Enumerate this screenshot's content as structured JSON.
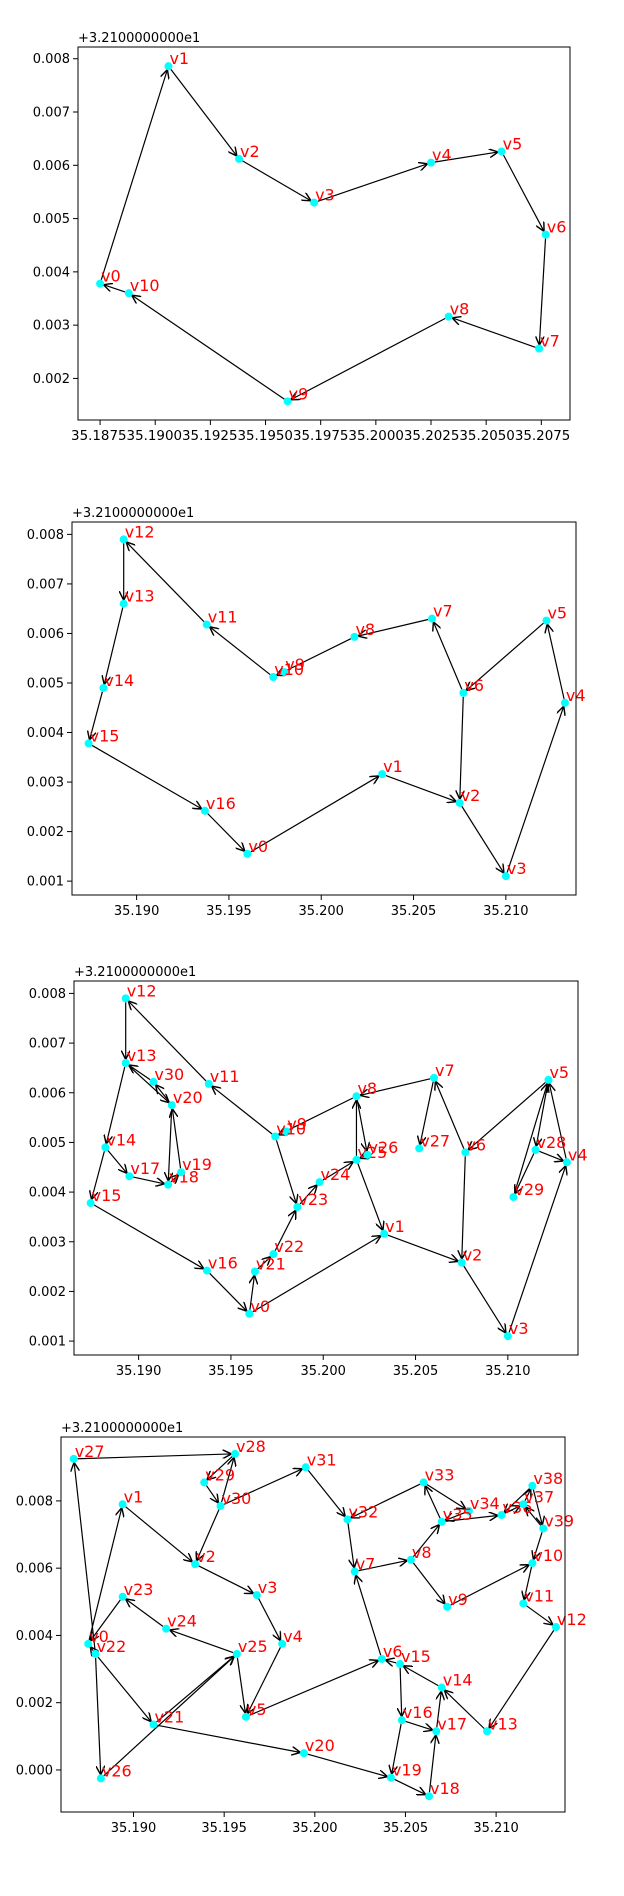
{
  "chart_data": [
    {
      "type": "graph",
      "offset_label": "+3.2100000000e1",
      "xlim": [
        35.1865,
        35.2088
      ],
      "ylim": [
        0.00122,
        0.00822
      ],
      "xticks": [
        "35.187535.190035.192535.195035.197535.200035.202535.205035.2075"
      ],
      "xtick_values": [
        35.1875,
        35.19,
        35.1925,
        35.195,
        35.1975,
        35.2,
        35.2025,
        35.205,
        35.2075
      ],
      "yticks": [
        "0.002",
        "0.003",
        "0.004",
        "0.005",
        "0.006",
        "0.007",
        "0.008"
      ],
      "ytick_values": [
        0.002,
        0.003,
        0.004,
        0.005,
        0.006,
        0.007,
        0.008
      ],
      "nodes": [
        {
          "name": "v0",
          "x": 35.1875,
          "y": 0.00378
        },
        {
          "name": "v1",
          "x": 35.1906,
          "y": 0.00786
        },
        {
          "name": "v2",
          "x": 35.1938,
          "y": 0.00612
        },
        {
          "name": "v3",
          "x": 35.1972,
          "y": 0.0053
        },
        {
          "name": "v4",
          "x": 35.2025,
          "y": 0.00605
        },
        {
          "name": "v5",
          "x": 35.2057,
          "y": 0.00626
        },
        {
          "name": "v6",
          "x": 35.2077,
          "y": 0.0047
        },
        {
          "name": "v7",
          "x": 35.2074,
          "y": 0.00256
        },
        {
          "name": "v8",
          "x": 35.2033,
          "y": 0.00316
        },
        {
          "name": "v9",
          "x": 35.196,
          "y": 0.00157
        },
        {
          "name": "v10",
          "x": 35.1888,
          "y": 0.0036
        }
      ],
      "edges": [
        [
          "v0",
          "v1"
        ],
        [
          "v1",
          "v2"
        ],
        [
          "v2",
          "v3"
        ],
        [
          "v3",
          "v4"
        ],
        [
          "v4",
          "v5"
        ],
        [
          "v5",
          "v6"
        ],
        [
          "v6",
          "v7"
        ],
        [
          "v7",
          "v8"
        ],
        [
          "v8",
          "v9"
        ],
        [
          "v9",
          "v10"
        ],
        [
          "v10",
          "v0"
        ]
      ]
    },
    {
      "type": "graph",
      "offset_label": "+3.2100000000e1",
      "xlim": [
        35.1865,
        35.2138
      ],
      "ylim": [
        0.00072,
        0.00825
      ],
      "xticks": [
        "35.190",
        "35.195",
        "35.200",
        "35.205",
        "35.210"
      ],
      "xtick_values": [
        35.19,
        35.195,
        35.2,
        35.205,
        35.21
      ],
      "yticks": [
        "0.001",
        "0.002",
        "0.003",
        "0.004",
        "0.005",
        "0.006",
        "0.007",
        "0.008"
      ],
      "ytick_values": [
        0.001,
        0.002,
        0.003,
        0.004,
        0.005,
        0.006,
        0.007,
        0.008
      ],
      "nodes": [
        {
          "name": "v0",
          "x": 35.196,
          "y": 0.00155
        },
        {
          "name": "v1",
          "x": 35.2033,
          "y": 0.00316
        },
        {
          "name": "v2",
          "x": 35.2075,
          "y": 0.00258
        },
        {
          "name": "v3",
          "x": 35.21,
          "y": 0.0011
        },
        {
          "name": "v4",
          "x": 35.2132,
          "y": 0.0046
        },
        {
          "name": "v5",
          "x": 35.2122,
          "y": 0.00626
        },
        {
          "name": "v6",
          "x": 35.2077,
          "y": 0.0048
        },
        {
          "name": "v7",
          "x": 35.206,
          "y": 0.0063
        },
        {
          "name": "v8",
          "x": 35.2018,
          "y": 0.00593
        },
        {
          "name": "v9",
          "x": 35.198,
          "y": 0.00522
        },
        {
          "name": "v10",
          "x": 35.1974,
          "y": 0.00512
        },
        {
          "name": "v11",
          "x": 35.1938,
          "y": 0.00618
        },
        {
          "name": "v12",
          "x": 35.1893,
          "y": 0.0079
        },
        {
          "name": "v13",
          "x": 35.1893,
          "y": 0.0066
        },
        {
          "name": "v14",
          "x": 35.1882,
          "y": 0.0049
        },
        {
          "name": "v15",
          "x": 35.1874,
          "y": 0.00378
        },
        {
          "name": "v16",
          "x": 35.1937,
          "y": 0.00242
        }
      ],
      "edges": [
        [
          "v0",
          "v1"
        ],
        [
          "v1",
          "v2"
        ],
        [
          "v2",
          "v3"
        ],
        [
          "v3",
          "v4"
        ],
        [
          "v4",
          "v5"
        ],
        [
          "v5",
          "v6"
        ],
        [
          "v6",
          "v2"
        ],
        [
          "v6",
          "v7"
        ],
        [
          "v7",
          "v8"
        ],
        [
          "v8",
          "v10"
        ],
        [
          "v10",
          "v11"
        ],
        [
          "v11",
          "v12"
        ],
        [
          "v12",
          "v13"
        ],
        [
          "v13",
          "v14"
        ],
        [
          "v14",
          "v15"
        ],
        [
          "v15",
          "v16"
        ],
        [
          "v16",
          "v0"
        ]
      ]
    },
    {
      "type": "graph",
      "offset_label": "+3.2100000000e1",
      "xlim": [
        35.1865,
        35.2138
      ],
      "ylim": [
        0.00072,
        0.00825
      ],
      "xticks": [
        "35.190",
        "35.195",
        "35.200",
        "35.205",
        "35.210"
      ],
      "xtick_values": [
        35.19,
        35.195,
        35.2,
        35.205,
        35.21
      ],
      "yticks": [
        "0.001",
        "0.002",
        "0.003",
        "0.004",
        "0.005",
        "0.006",
        "0.007",
        "0.008"
      ],
      "ytick_values": [
        0.001,
        0.002,
        0.003,
        0.004,
        0.005,
        0.006,
        0.007,
        0.008
      ],
      "nodes": [
        {
          "name": "v0",
          "x": 35.196,
          "y": 0.00155
        },
        {
          "name": "v1",
          "x": 35.2033,
          "y": 0.00316
        },
        {
          "name": "v2",
          "x": 35.2075,
          "y": 0.00258
        },
        {
          "name": "v3",
          "x": 35.21,
          "y": 0.0011
        },
        {
          "name": "v4",
          "x": 35.2132,
          "y": 0.0046
        },
        {
          "name": "v5",
          "x": 35.2122,
          "y": 0.00626
        },
        {
          "name": "v6",
          "x": 35.2077,
          "y": 0.0048
        },
        {
          "name": "v7",
          "x": 35.206,
          "y": 0.0063
        },
        {
          "name": "v8",
          "x": 35.2018,
          "y": 0.00593
        },
        {
          "name": "v9",
          "x": 35.198,
          "y": 0.00522
        },
        {
          "name": "v10",
          "x": 35.1974,
          "y": 0.00512
        },
        {
          "name": "v11",
          "x": 35.1938,
          "y": 0.00618
        },
        {
          "name": "v12",
          "x": 35.1893,
          "y": 0.0079
        },
        {
          "name": "v13",
          "x": 35.1893,
          "y": 0.0066
        },
        {
          "name": "v14",
          "x": 35.1882,
          "y": 0.0049
        },
        {
          "name": "v15",
          "x": 35.1874,
          "y": 0.00378
        },
        {
          "name": "v16",
          "x": 35.1937,
          "y": 0.00242
        },
        {
          "name": "v17",
          "x": 35.1895,
          "y": 0.00432
        },
        {
          "name": "v18",
          "x": 35.1916,
          "y": 0.00415
        },
        {
          "name": "v19",
          "x": 35.1923,
          "y": 0.0044
        },
        {
          "name": "v20",
          "x": 35.1918,
          "y": 0.00575
        },
        {
          "name": "v21",
          "x": 35.1963,
          "y": 0.0024
        },
        {
          "name": "v22",
          "x": 35.1973,
          "y": 0.00275
        },
        {
          "name": "v23",
          "x": 35.1986,
          "y": 0.0037
        },
        {
          "name": "v24",
          "x": 35.1998,
          "y": 0.0042
        },
        {
          "name": "v25",
          "x": 35.2018,
          "y": 0.00465
        },
        {
          "name": "v26",
          "x": 35.2024,
          "y": 0.00475
        },
        {
          "name": "v27",
          "x": 35.2052,
          "y": 0.00488
        },
        {
          "name": "v28",
          "x": 35.2115,
          "y": 0.00485
        },
        {
          "name": "v29",
          "x": 35.2103,
          "y": 0.0039
        },
        {
          "name": "v30",
          "x": 35.1908,
          "y": 0.00622
        }
      ],
      "edges": [
        [
          "v0",
          "v1"
        ],
        [
          "v1",
          "v2"
        ],
        [
          "v2",
          "v3"
        ],
        [
          "v3",
          "v4"
        ],
        [
          "v4",
          "v5"
        ],
        [
          "v5",
          "v6"
        ],
        [
          "v6",
          "v2"
        ],
        [
          "v6",
          "v7"
        ],
        [
          "v7",
          "v8"
        ],
        [
          "v8",
          "v10"
        ],
        [
          "v10",
          "v11"
        ],
        [
          "v11",
          "v12"
        ],
        [
          "v12",
          "v13"
        ],
        [
          "v13",
          "v14"
        ],
        [
          "v14",
          "v15"
        ],
        [
          "v15",
          "v16"
        ],
        [
          "v16",
          "v0"
        ],
        [
          "v14",
          "v17"
        ],
        [
          "v17",
          "v18"
        ],
        [
          "v18",
          "v19"
        ],
        [
          "v19",
          "v20"
        ],
        [
          "v20",
          "v18"
        ],
        [
          "v20",
          "v30"
        ],
        [
          "v30",
          "v13"
        ],
        [
          "v13",
          "v20"
        ],
        [
          "v0",
          "v21"
        ],
        [
          "v21",
          "v22"
        ],
        [
          "v22",
          "v23"
        ],
        [
          "v23",
          "v24"
        ],
        [
          "v24",
          "v25"
        ],
        [
          "v25",
          "v8"
        ],
        [
          "v8",
          "v26"
        ],
        [
          "v26",
          "v25"
        ],
        [
          "v25",
          "v1"
        ],
        [
          "v10",
          "v23"
        ],
        [
          "v7",
          "v27"
        ],
        [
          "v5",
          "v28"
        ],
        [
          "v28",
          "v4"
        ],
        [
          "v28",
          "v29"
        ],
        [
          "v29",
          "v5"
        ]
      ]
    },
    {
      "type": "graph",
      "offset_label": "+3.2100000000e1",
      "xlim": [
        35.186,
        35.2138
      ],
      "ylim": [
        -0.00125,
        0.0099
      ],
      "xticks": [
        "35.190",
        "35.195",
        "35.200",
        "35.205",
        "35.210"
      ],
      "xtick_values": [
        35.19,
        35.195,
        35.2,
        35.205,
        35.21
      ],
      "yticks": [
        "0.000",
        "0.002",
        "0.004",
        "0.006",
        "0.008"
      ],
      "ytick_values": [
        0.0,
        0.002,
        0.004,
        0.006,
        0.008
      ],
      "nodes": [
        {
          "name": "v0",
          "x": 35.1875,
          "y": 0.00375
        },
        {
          "name": "v1",
          "x": 35.1894,
          "y": 0.0079
        },
        {
          "name": "v2",
          "x": 35.1934,
          "y": 0.00612
        },
        {
          "name": "v3",
          "x": 35.1968,
          "y": 0.0052
        },
        {
          "name": "v4",
          "x": 35.1982,
          "y": 0.00375
        },
        {
          "name": "v5",
          "x": 35.1962,
          "y": 0.00158
        },
        {
          "name": "v6",
          "x": 35.2037,
          "y": 0.0033
        },
        {
          "name": "v7",
          "x": 35.2022,
          "y": 0.0059
        },
        {
          "name": "v8",
          "x": 35.2053,
          "y": 0.00625
        },
        {
          "name": "v9",
          "x": 35.2073,
          "y": 0.00485
        },
        {
          "name": "v10",
          "x": 35.212,
          "y": 0.00615
        },
        {
          "name": "v11",
          "x": 35.2115,
          "y": 0.00495
        },
        {
          "name": "v12",
          "x": 35.2133,
          "y": 0.00425
        },
        {
          "name": "v13",
          "x": 35.2095,
          "y": 0.00115
        },
        {
          "name": "v14",
          "x": 35.207,
          "y": 0.00245
        },
        {
          "name": "v15",
          "x": 35.2047,
          "y": 0.00315
        },
        {
          "name": "v16",
          "x": 35.2048,
          "y": 0.00148
        },
        {
          "name": "v17",
          "x": 35.2067,
          "y": 0.00115
        },
        {
          "name": "v18",
          "x": 35.2063,
          "y": -0.00078
        },
        {
          "name": "v19",
          "x": 35.2042,
          "y": -0.00023
        },
        {
          "name": "v20",
          "x": 35.1994,
          "y": 0.0005
        },
        {
          "name": "v21",
          "x": 35.1911,
          "y": 0.00135
        },
        {
          "name": "v22",
          "x": 35.1879,
          "y": 0.00345
        },
        {
          "name": "v23",
          "x": 35.1894,
          "y": 0.00515
        },
        {
          "name": "v24",
          "x": 35.1918,
          "y": 0.0042
        },
        {
          "name": "v25",
          "x": 35.1957,
          "y": 0.00345
        },
        {
          "name": "v26",
          "x": 35.1882,
          "y": -0.00025
        },
        {
          "name": "v27",
          "x": 35.1867,
          "y": 0.00925
        },
        {
          "name": "v28",
          "x": 35.1956,
          "y": 0.0094
        },
        {
          "name": "v29",
          "x": 35.1939,
          "y": 0.00855
        },
        {
          "name": "v30",
          "x": 35.1948,
          "y": 0.00785
        },
        {
          "name": "v31",
          "x": 35.1995,
          "y": 0.009
        },
        {
          "name": "v32",
          "x": 35.2018,
          "y": 0.00745
        },
        {
          "name": "v33",
          "x": 35.206,
          "y": 0.00855
        },
        {
          "name": "v34",
          "x": 35.2085,
          "y": 0.0077
        },
        {
          "name": "v35",
          "x": 35.207,
          "y": 0.00738
        },
        {
          "name": "v36",
          "x": 35.2103,
          "y": 0.00758
        },
        {
          "name": "v37",
          "x": 35.2115,
          "y": 0.0079
        },
        {
          "name": "v38",
          "x": 35.212,
          "y": 0.00845
        },
        {
          "name": "v39",
          "x": 35.2126,
          "y": 0.00718
        }
      ],
      "edges": [
        [
          "v22",
          "v0"
        ],
        [
          "v0",
          "v1"
        ],
        [
          "v1",
          "v2"
        ],
        [
          "v2",
          "v3"
        ],
        [
          "v3",
          "v4"
        ],
        [
          "v4",
          "v5"
        ],
        [
          "v5",
          "v6"
        ],
        [
          "v6",
          "v7"
        ],
        [
          "v7",
          "v8"
        ],
        [
          "v8",
          "v9"
        ],
        [
          "v9",
          "v10"
        ],
        [
          "v10",
          "v11"
        ],
        [
          "v11",
          "v12"
        ],
        [
          "v12",
          "v13"
        ],
        [
          "v13",
          "v14"
        ],
        [
          "v14",
          "v15"
        ],
        [
          "v15",
          "v6"
        ],
        [
          "v15",
          "v16"
        ],
        [
          "v16",
          "v17"
        ],
        [
          "v17",
          "v14"
        ],
        [
          "v16",
          "v19"
        ],
        [
          "v19",
          "v18"
        ],
        [
          "v18",
          "v17"
        ],
        [
          "v21",
          "v20"
        ],
        [
          "v20",
          "v19"
        ],
        [
          "v22",
          "v21"
        ],
        [
          "v21",
          "v25"
        ],
        [
          "v25",
          "v24"
        ],
        [
          "v24",
          "v23"
        ],
        [
          "v23",
          "v0"
        ],
        [
          "v22",
          "v26"
        ],
        [
          "v26",
          "v25"
        ],
        [
          "v25",
          "v5"
        ],
        [
          "v22",
          "v27"
        ],
        [
          "v27",
          "v28"
        ],
        [
          "v28",
          "v29"
        ],
        [
          "v29",
          "v30"
        ],
        [
          "v30",
          "v28"
        ],
        [
          "v30",
          "v2"
        ],
        [
          "v30",
          "v31"
        ],
        [
          "v31",
          "v32"
        ],
        [
          "v32",
          "v7"
        ],
        [
          "v8",
          "v35"
        ],
        [
          "v35",
          "v33"
        ],
        [
          "v33",
          "v34"
        ],
        [
          "v34",
          "v35"
        ],
        [
          "v33",
          "v32"
        ],
        [
          "v35",
          "v36"
        ],
        [
          "v36",
          "v37"
        ],
        [
          "v37",
          "v38"
        ],
        [
          "v38",
          "v36"
        ],
        [
          "v38",
          "v39"
        ],
        [
          "v39",
          "v37"
        ],
        [
          "v39",
          "v10"
        ]
      ]
    }
  ]
}
